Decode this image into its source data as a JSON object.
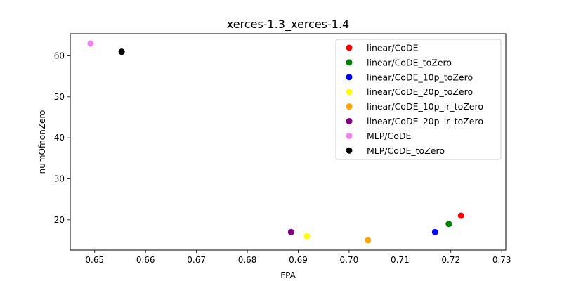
{
  "chart_data": {
    "type": "scatter",
    "title": "xerces-1.3_xerces-1.4",
    "xlabel": "FPA",
    "ylabel": "numOfnonZero",
    "xlim": [
      0.6452,
      0.7308
    ],
    "ylim": [
      12.6,
      65.4
    ],
    "xticks": [
      0.65,
      0.66,
      0.67,
      0.68,
      0.69,
      0.7,
      0.71,
      0.72,
      0.73
    ],
    "xtick_labels": [
      "0.65",
      "0.66",
      "0.67",
      "0.68",
      "0.69",
      "0.70",
      "0.71",
      "0.72",
      "0.73"
    ],
    "yticks": [
      20,
      30,
      40,
      50,
      60
    ],
    "ytick_labels": [
      "20",
      "30",
      "40",
      "50",
      "60"
    ],
    "grid": false,
    "legend_position": "top-right",
    "series": [
      {
        "name": "linear/CoDE",
        "color": "#ff0000",
        "x": [
          0.722
        ],
        "y": [
          21
        ]
      },
      {
        "name": "linear/CoDE_toZero",
        "color": "#008000",
        "x": [
          0.7196
        ],
        "y": [
          19
        ]
      },
      {
        "name": "linear/CoDE_10p_toZero",
        "color": "#0000ff",
        "x": [
          0.7169
        ],
        "y": [
          17
        ]
      },
      {
        "name": "linear/CoDE_20p_toZero",
        "color": "#ffff00",
        "x": [
          0.6917
        ],
        "y": [
          16
        ]
      },
      {
        "name": "linear/CoDE_10p_lr_toZero",
        "color": "#ffa500",
        "x": [
          0.7037
        ],
        "y": [
          15
        ]
      },
      {
        "name": "linear/CoDE_20p_lr_toZero",
        "color": "#800080",
        "x": [
          0.6886
        ],
        "y": [
          17
        ]
      },
      {
        "name": "MLP/CoDE",
        "color": "#ee82ee",
        "x": [
          0.6492
        ],
        "y": [
          63
        ]
      },
      {
        "name": "MLP/CoDE_toZero",
        "color": "#000000",
        "x": [
          0.6553
        ],
        "y": [
          61
        ]
      }
    ]
  }
}
